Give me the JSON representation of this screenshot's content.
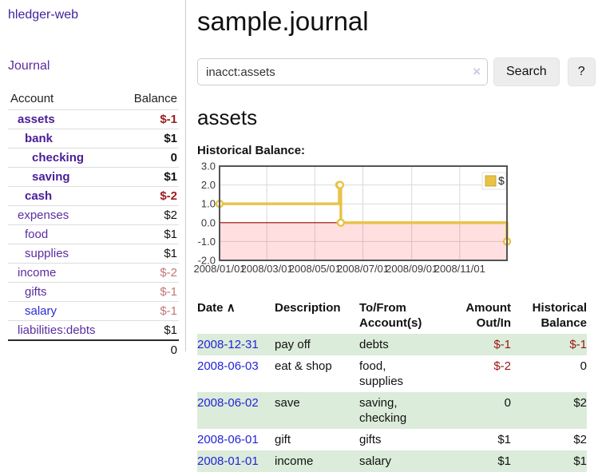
{
  "app": {
    "title": "hledger-web",
    "nav": {
      "journal": "Journal"
    }
  },
  "sidebar": {
    "columns": {
      "account": "Account",
      "balance": "Balance"
    },
    "rows": [
      {
        "name": "assets",
        "balance": "$-1"
      },
      {
        "name": "bank",
        "balance": "$1"
      },
      {
        "name": "checking",
        "balance": "0"
      },
      {
        "name": "saving",
        "balance": "$1"
      },
      {
        "name": "cash",
        "balance": "$-2"
      },
      {
        "name": "expenses",
        "balance": "$2"
      },
      {
        "name": "food",
        "balance": "$1"
      },
      {
        "name": "supplies",
        "balance": "$1"
      },
      {
        "name": "income",
        "balance": "$-2"
      },
      {
        "name": "gifts",
        "balance": "$-1"
      },
      {
        "name": "salary",
        "balance": "$-1"
      },
      {
        "name": "liabilities:debts",
        "balance": "$1"
      }
    ],
    "total": "0"
  },
  "main": {
    "title": "sample.journal",
    "search": {
      "value": "inacct:assets",
      "clear_icon": "×",
      "button_label": "Search",
      "help_label": "?"
    },
    "account_heading": "assets",
    "chart_title": "Historical Balance:"
  },
  "chart_data": {
    "type": "line",
    "title": "Historical Balance",
    "step": true,
    "series": [
      {
        "name": "$",
        "points": [
          {
            "date": "2008-01-01",
            "day": 0,
            "value": 1
          },
          {
            "date": "2008-06-01",
            "day": 152,
            "value": 2
          },
          {
            "date": "2008-06-02",
            "day": 153,
            "value": 2
          },
          {
            "date": "2008-06-03",
            "day": 154,
            "value": 0
          },
          {
            "date": "2008-12-31",
            "day": 365,
            "value": -1
          }
        ]
      }
    ],
    "x_ticks": [
      {
        "day": 0,
        "label": "2008/01/01"
      },
      {
        "day": 60,
        "label": "2008/03/01"
      },
      {
        "day": 121,
        "label": "2008/05/01"
      },
      {
        "day": 182,
        "label": "2008/07/01"
      },
      {
        "day": 244,
        "label": "2008/09/01"
      },
      {
        "day": 305,
        "label": "2008/11/01"
      }
    ],
    "xlim_days": [
      0,
      365
    ],
    "y_ticks": [
      3,
      2,
      1,
      0,
      -1,
      -2
    ],
    "ylim": [
      -2,
      3
    ],
    "legend": {
      "position": "top-right",
      "label": "$"
    },
    "colors": {
      "line": "#e9c246",
      "point_fill": "#ffffff",
      "zero_line": "#9a0000",
      "negative_region": "rgba(255,30,30,0.14)",
      "grid": "#d9d9d9",
      "border": "#545454",
      "tick_text": "#3a3a3a"
    }
  },
  "register": {
    "sort_icon": "∧",
    "headers": [
      "Date",
      "Description",
      "To/From Account(s)",
      "Amount Out/In",
      "Historical Balance"
    ],
    "rows": [
      {
        "date": "2008-12-31",
        "description": "pay off",
        "accounts": "debts",
        "amount": "$-1",
        "balance": "$-1"
      },
      {
        "date": "2008-06-03",
        "description": "eat & shop",
        "accounts": "food, supplies",
        "amount": "$-2",
        "balance": "0"
      },
      {
        "date": "2008-06-02",
        "description": "save",
        "accounts": "saving, checking",
        "amount": "0",
        "balance": "$2"
      },
      {
        "date": "2008-06-01",
        "description": "gift",
        "accounts": "gifts",
        "amount": "$1",
        "balance": "$2"
      },
      {
        "date": "2008-01-01",
        "description": "income",
        "accounts": "salary",
        "amount": "$1",
        "balance": "$1"
      }
    ]
  }
}
